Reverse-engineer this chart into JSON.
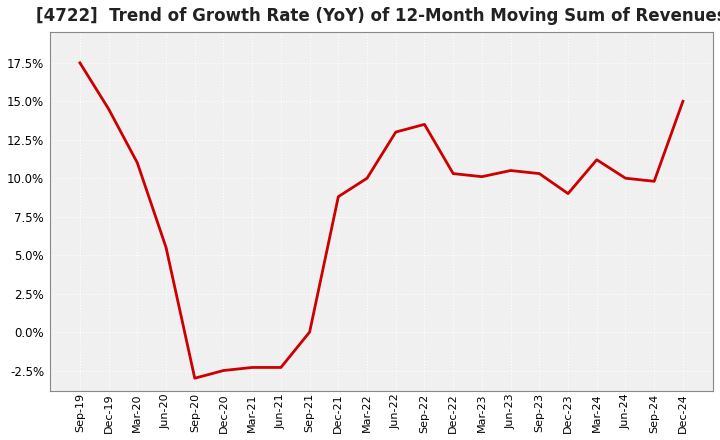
{
  "title": "[4722]  Trend of Growth Rate (YoY) of 12-Month Moving Sum of Revenues",
  "title_fontsize": 12,
  "line_color": "#cc0000",
  "background_color": "#ffffff",
  "plot_bg_color": "#f0f0f0",
  "grid_color": "#ffffff",
  "ylim": [
    -3.8,
    19.5
  ],
  "yticks": [
    -2.5,
    0.0,
    2.5,
    5.0,
    7.5,
    10.0,
    12.5,
    15.0,
    17.5
  ],
  "x_labels": [
    "Sep-19",
    "Dec-19",
    "Mar-20",
    "Jun-20",
    "Sep-20",
    "Dec-20",
    "Mar-21",
    "Jun-21",
    "Sep-21",
    "Dec-21",
    "Mar-22",
    "Jun-22",
    "Sep-22",
    "Dec-22",
    "Mar-23",
    "Jun-23",
    "Sep-23",
    "Dec-23",
    "Mar-24",
    "Jun-24",
    "Sep-24",
    "Dec-24"
  ],
  "values": [
    17.5,
    14.5,
    11.0,
    5.5,
    -3.0,
    -2.5,
    -2.3,
    -2.3,
    0.0,
    8.8,
    10.0,
    13.0,
    13.5,
    10.3,
    10.1,
    10.5,
    10.3,
    9.0,
    11.2,
    10.0,
    9.8,
    15.0
  ]
}
